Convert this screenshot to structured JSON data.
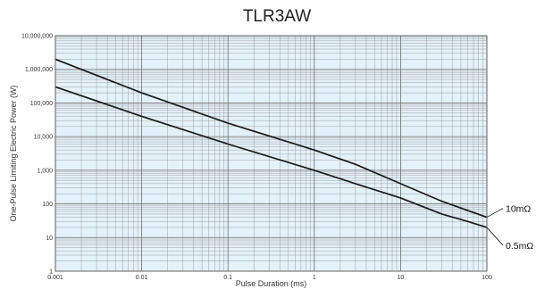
{
  "chart_data": {
    "type": "line",
    "title": "TLR3AW",
    "xlabel": "Pulse Duration (ms)",
    "ylabel": "One-Pulse Limiting Electric Power (W)",
    "xscale": "log",
    "yscale": "log",
    "xlim": [
      0.001,
      100
    ],
    "ylim": [
      1,
      10000000
    ],
    "grid": true,
    "x_ticks": [
      "0.001",
      "0.01",
      "0.1",
      "1",
      "10",
      "100"
    ],
    "y_ticks": [
      "1",
      "10",
      "100",
      "1,000",
      "10,000",
      "100,000",
      "1,000,000",
      "10,000,000"
    ],
    "series": [
      {
        "name": "10mΩ",
        "x": [
          0.001,
          0.01,
          0.1,
          1,
          3,
          10,
          30,
          100
        ],
        "y": [
          2000000,
          200000,
          25000,
          4000,
          1500,
          400,
          120,
          40
        ],
        "color": "#1a1a1a"
      },
      {
        "name": "0.5mΩ",
        "x": [
          0.001,
          0.01,
          0.1,
          1,
          3,
          10,
          30,
          60,
          100
        ],
        "y": [
          300000,
          40000,
          6000,
          1000,
          400,
          150,
          50,
          30,
          20
        ],
        "color": "#1a1a1a"
      }
    ],
    "colors": {
      "plot_background": "#e3f1fa",
      "grid": "#9a9a9a",
      "line": "#1a1a1a"
    }
  }
}
